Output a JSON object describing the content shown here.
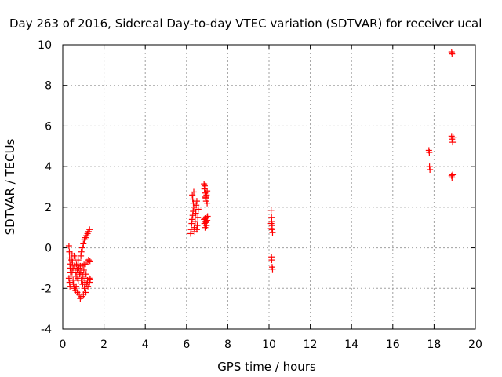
{
  "chart_data": {
    "type": "scatter",
    "title": "Day 263 of 2016, Sidereal Day-to-day VTEC variation (SDTVAR) for receiver ucal",
    "xlabel": "GPS time / hours",
    "ylabel": "SDTVAR / TECUs",
    "xlim": [
      0,
      20
    ],
    "ylim": [
      -4,
      10
    ],
    "x_ticks": [
      "0",
      "2",
      "4",
      "6",
      "8",
      "10",
      "12",
      "14",
      "16",
      "18",
      "20"
    ],
    "y_ticks": [
      "-4",
      "-2",
      "0",
      "2",
      "4",
      "6",
      "8",
      "10"
    ],
    "grid": true,
    "marker": "+",
    "color": "#ff0000",
    "series": [
      {
        "points": [
          [
            0.3,
            0.1
          ],
          [
            0.32,
            -0.2
          ],
          [
            0.33,
            -0.5
          ],
          [
            0.35,
            -0.8
          ],
          [
            0.36,
            -1.0
          ],
          [
            0.38,
            -1.2
          ],
          [
            0.4,
            -1.4
          ],
          [
            0.3,
            -1.5
          ],
          [
            0.33,
            -1.7
          ],
          [
            0.35,
            -1.9
          ],
          [
            0.42,
            -0.6
          ],
          [
            0.45,
            -0.3
          ],
          [
            0.47,
            -0.7
          ],
          [
            0.5,
            -1.0
          ],
          [
            0.5,
            -1.6
          ],
          [
            0.52,
            -1.8
          ],
          [
            0.55,
            -2.0
          ],
          [
            0.57,
            -0.9
          ],
          [
            0.6,
            -1.2
          ],
          [
            0.6,
            -0.5
          ],
          [
            0.62,
            -2.1
          ],
          [
            0.65,
            -1.4
          ],
          [
            0.67,
            -0.8
          ],
          [
            0.7,
            -1.1
          ],
          [
            0.7,
            -2.2
          ],
          [
            0.72,
            -1.5
          ],
          [
            0.75,
            -0.6
          ],
          [
            0.78,
            -1.0
          ],
          [
            0.8,
            -2.3
          ],
          [
            0.82,
            -1.3
          ],
          [
            0.85,
            -0.9
          ],
          [
            0.85,
            -2.5
          ],
          [
            0.88,
            -0.4
          ],
          [
            0.9,
            -1.6
          ],
          [
            0.9,
            -0.2
          ],
          [
            0.92,
            -2.4
          ],
          [
            0.95,
            -0.9
          ],
          [
            0.95,
            0.0
          ],
          [
            0.97,
            -1.8
          ],
          [
            1.0,
            0.2
          ],
          [
            1.0,
            -2.3
          ],
          [
            1.02,
            -1.1
          ],
          [
            1.03,
            -0.8
          ],
          [
            1.05,
            0.4
          ],
          [
            1.05,
            -2.0
          ],
          [
            1.08,
            -1.5
          ],
          [
            1.1,
            0.5
          ],
          [
            1.1,
            -0.8
          ],
          [
            1.12,
            -2.2
          ],
          [
            1.13,
            -1.3
          ],
          [
            1.15,
            0.6
          ],
          [
            1.15,
            -1.8
          ],
          [
            1.18,
            -0.7
          ],
          [
            1.2,
            0.7
          ],
          [
            1.2,
            -1.6
          ],
          [
            1.22,
            -1.9
          ],
          [
            1.25,
            0.8
          ],
          [
            1.25,
            -0.6
          ],
          [
            1.28,
            -1.5
          ],
          [
            1.3,
            0.9
          ],
          [
            1.3,
            -1.7
          ],
          [
            1.32,
            -0.65
          ],
          [
            1.33,
            -1.55
          ],
          [
            0.45,
            -1.2
          ],
          [
            0.55,
            -0.4
          ],
          [
            0.65,
            -1.9
          ],
          [
            0.75,
            -1.6
          ],
          [
            0.87,
            -1.2
          ],
          [
            0.98,
            -1.4
          ],
          [
            1.07,
            -1.7
          ],
          [
            6.2,
            0.7
          ],
          [
            6.22,
            0.9
          ],
          [
            6.25,
            1.2
          ],
          [
            6.27,
            1.4
          ],
          [
            6.3,
            1.6
          ],
          [
            6.32,
            1.8
          ],
          [
            6.35,
            2.0
          ],
          [
            6.28,
            2.6
          ],
          [
            6.3,
            2.4
          ],
          [
            6.33,
            2.2
          ],
          [
            6.37,
            1.0
          ],
          [
            6.4,
            0.8
          ],
          [
            6.42,
            1.3
          ],
          [
            6.45,
            1.7
          ],
          [
            6.47,
            2.1
          ],
          [
            6.5,
            2.3
          ],
          [
            6.5,
            0.9
          ],
          [
            6.52,
            1.1
          ],
          [
            6.55,
            1.5
          ],
          [
            6.57,
            1.9
          ],
          [
            6.35,
            2.75
          ],
          [
            6.85,
            3.15
          ],
          [
            6.87,
            2.9
          ],
          [
            6.9,
            2.7
          ],
          [
            6.92,
            2.5
          ],
          [
            6.95,
            2.3
          ],
          [
            6.97,
            2.6
          ],
          [
            7.0,
            2.8
          ],
          [
            6.88,
            3.05
          ],
          [
            6.93,
            2.45
          ],
          [
            7.0,
            2.2
          ],
          [
            6.85,
            1.4
          ],
          [
            6.87,
            1.2
          ],
          [
            6.9,
            1.0
          ],
          [
            6.92,
            1.3
          ],
          [
            6.95,
            1.5
          ],
          [
            6.97,
            1.1
          ],
          [
            7.0,
            1.35
          ],
          [
            7.02,
            1.55
          ],
          [
            6.9,
            1.45
          ],
          [
            6.95,
            1.25
          ],
          [
            10.1,
            1.85
          ],
          [
            10.12,
            1.5
          ],
          [
            10.13,
            1.3
          ],
          [
            10.15,
            1.1
          ],
          [
            10.15,
            0.9
          ],
          [
            10.17,
            0.75
          ],
          [
            10.1,
            0.95
          ],
          [
            10.12,
            -0.45
          ],
          [
            10.13,
            -0.6
          ],
          [
            10.15,
            -0.95
          ],
          [
            10.17,
            -1.05
          ],
          [
            10.1,
            1.2
          ],
          [
            17.75,
            4.8
          ],
          [
            17.77,
            4.7
          ],
          [
            17.78,
            4.0
          ],
          [
            17.8,
            3.85
          ],
          [
            18.85,
            9.65
          ],
          [
            18.87,
            9.55
          ],
          [
            18.85,
            5.5
          ],
          [
            18.87,
            5.35
          ],
          [
            18.9,
            5.2
          ],
          [
            18.92,
            5.45
          ],
          [
            18.85,
            3.55
          ],
          [
            18.87,
            3.45
          ],
          [
            18.9,
            3.6
          ]
        ]
      }
    ]
  }
}
